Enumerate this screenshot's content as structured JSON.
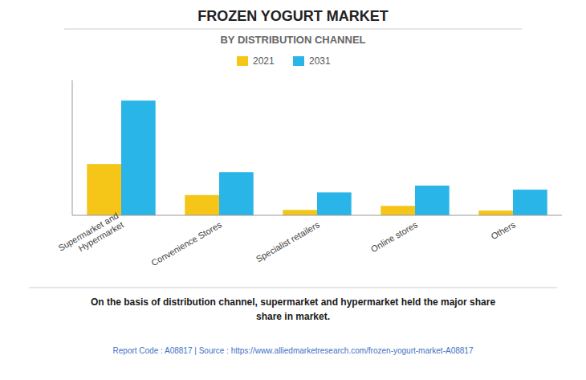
{
  "chart_data": {
    "type": "bar",
    "title": "FROZEN YOGURT MARKET",
    "subtitle": "BY DISTRIBUTION CHANNEL",
    "annotations": [
      "On the basis of distribution channel, supermarket and hypermarket held the major share\nshare in market.",
      "Report Code : A08817  |  Source : https://www.alliedmarketresearch.com/frozen-yogurt-market-A08817"
    ],
    "categories": [
      "Supermarket and\nHypermarket",
      "Convenience Stores",
      "Specialist retailers",
      "Online stores",
      "Others"
    ],
    "series": [
      {
        "name": "2021",
        "color": "#F5C518",
        "values": [
          3.8,
          1.5,
          0.4,
          0.7,
          0.35
        ]
      },
      {
        "name": "2031",
        "color": "#29B5E8",
        "values": [
          8.5,
          3.2,
          1.7,
          2.2,
          1.9
        ]
      }
    ],
    "ylim": [
      0,
      10
    ],
    "yticks": [],
    "grid": false,
    "legend": "top",
    "tick_labels": "x"
  }
}
